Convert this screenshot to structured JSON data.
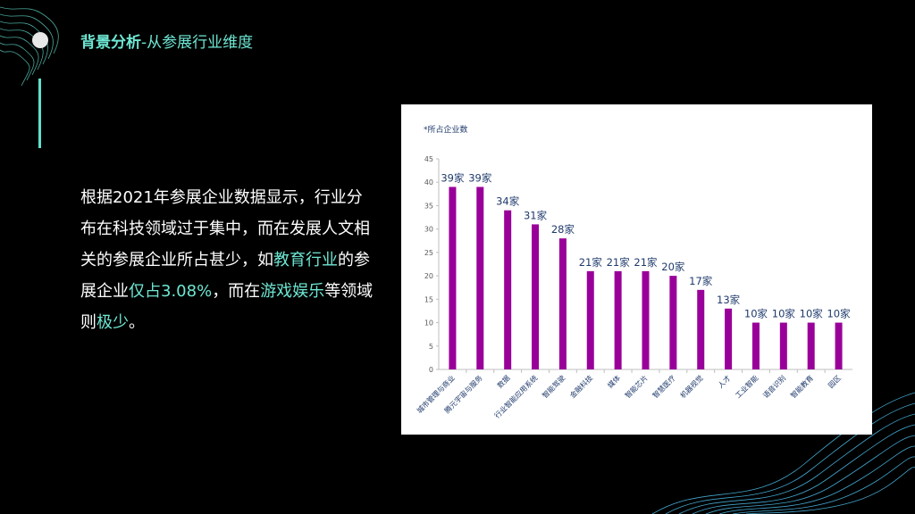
{
  "header": {
    "title_bold": "背景分析",
    "title_rest": "-从参展行业维度"
  },
  "body": {
    "s1": "根据2021年参展企业数据显示，行业分布在科技领域过于集中，而在发展人文相关的参展企业所占甚少，如",
    "h1": "教育行业",
    "s2": "的参展企业",
    "h2": "仅占3.08%",
    "s3": "，而在",
    "h3": "游戏娱乐",
    "s4": "等领域则",
    "h4": "极少",
    "s5": "。"
  },
  "colors": {
    "accent": "#6ee7d3",
    "bar": "#990099",
    "label": "#1f3a6b"
  },
  "chart_data": {
    "type": "bar",
    "ylabel": "*所占企业数",
    "ylim": [
      0,
      45
    ],
    "yticks": [
      0,
      5,
      10,
      15,
      20,
      25,
      30,
      35,
      40,
      45
    ],
    "categories": [
      "城市管理与商业",
      "腾元宇宙与服务",
      "数据",
      "行业智能应用系统",
      "智能驾驶",
      "金融科技",
      "媒体",
      "智能芯片",
      "智慧医疗",
      "机器视觉",
      "人才",
      "工业智能",
      "语音识别",
      "智能教育",
      "园区"
    ],
    "values": [
      39,
      39,
      34,
      31,
      28,
      21,
      21,
      21,
      20,
      17,
      13,
      10,
      10,
      10,
      10
    ],
    "value_labels": [
      "39家",
      "39家",
      "34家",
      "31家",
      "28家",
      "21家",
      "21家",
      "21家",
      "20家",
      "17家",
      "13家",
      "10家",
      "10家",
      "10家",
      "10家"
    ],
    "grid": false,
    "legend": "none"
  }
}
